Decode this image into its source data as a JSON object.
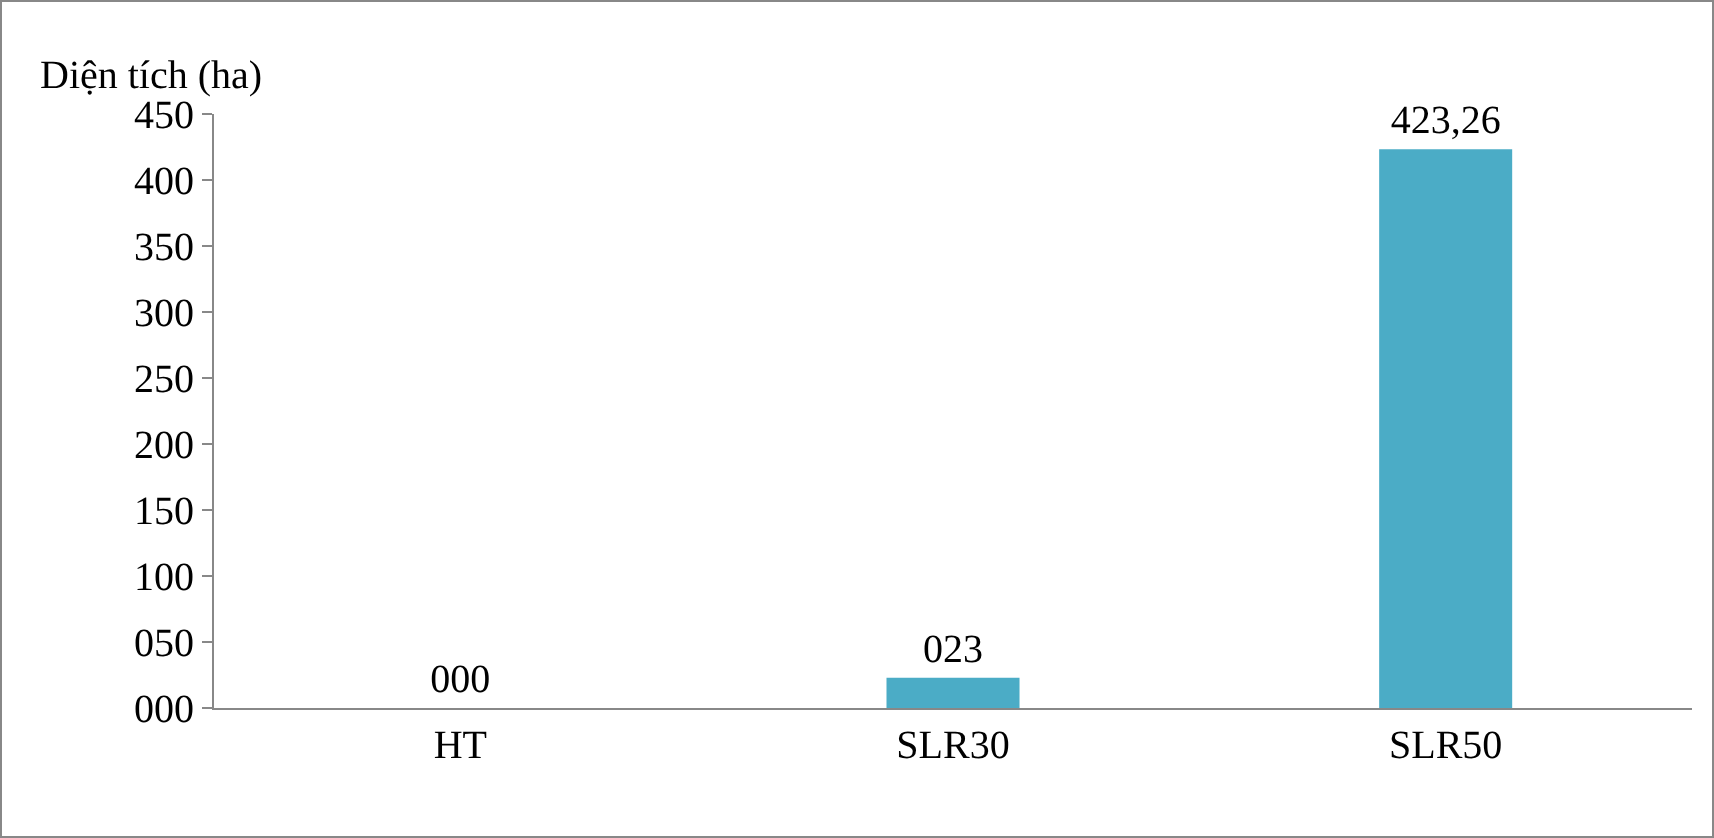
{
  "chart_data": {
    "type": "bar",
    "ylabel": "Diện tích (ha)",
    "categories": [
      "HT",
      "SLR30",
      "SLR50"
    ],
    "values": [
      0,
      23,
      423.26
    ],
    "value_labels": [
      "000",
      "023",
      "423,26"
    ],
    "color": "#4bacc6",
    "ylim": [
      0,
      450
    ],
    "yticks": [
      {
        "value": 0,
        "label": "000"
      },
      {
        "value": 50,
        "label": "050"
      },
      100,
      150,
      200,
      250,
      300,
      350,
      400,
      450
    ],
    "grid": false,
    "legend": false
  }
}
